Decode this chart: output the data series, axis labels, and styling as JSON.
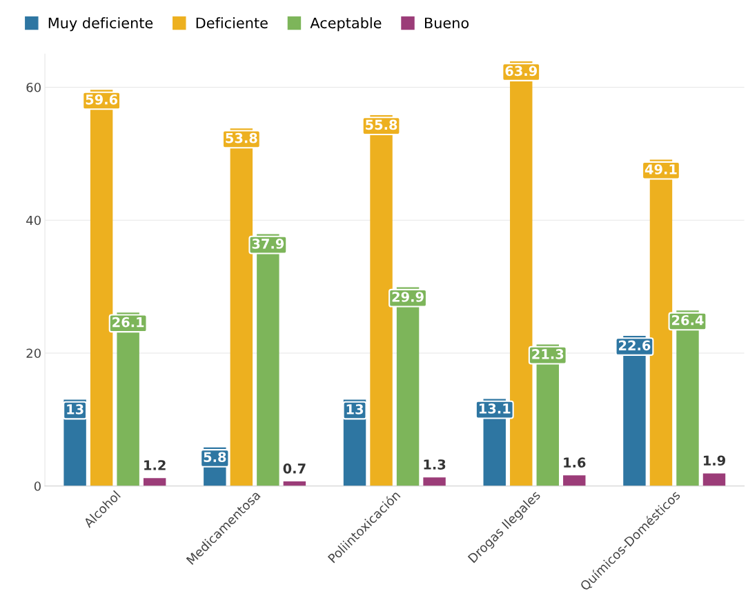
{
  "chart_data": {
    "type": "bar",
    "categories": [
      "Alcohol",
      "Medicamentosa",
      "Poliintoxicación",
      "Drogas Ilegales",
      "Químicos-Domésticos"
    ],
    "series": [
      {
        "name": "Muy deficiente",
        "color": "#2e76a2",
        "values": [
          13,
          5.8,
          13,
          13.1,
          22.6
        ]
      },
      {
        "name": "Deficiente",
        "color": "#edb01f",
        "values": [
          59.6,
          53.8,
          55.8,
          63.9,
          49.1
        ]
      },
      {
        "name": "Aceptable",
        "color": "#7db55a",
        "values": [
          26.1,
          37.9,
          29.9,
          21.3,
          26.4
        ]
      },
      {
        "name": "Bueno",
        "color": "#9b3c78",
        "values": [
          1.2,
          0.7,
          1.3,
          1.6,
          1.9
        ]
      }
    ],
    "ylim": [
      0,
      65
    ],
    "yticks": [
      0,
      20,
      40,
      60
    ],
    "grid": "y",
    "legend": "top left",
    "data_labels": true
  }
}
